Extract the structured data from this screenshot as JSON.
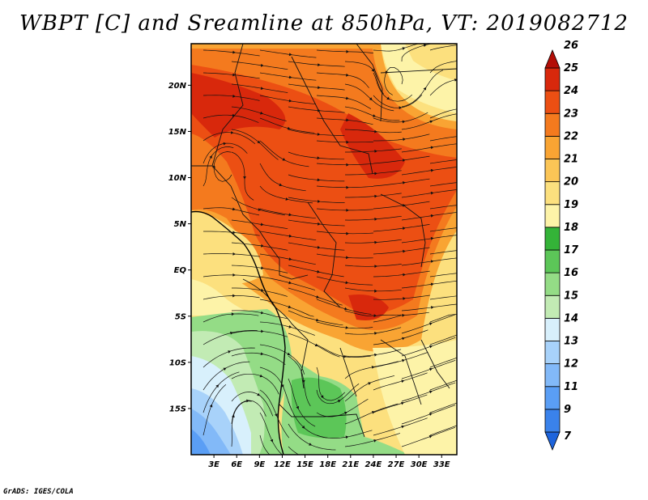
{
  "title": "WBPT [C] and Sreamline at 850hPa, VT: 2019082712",
  "credit": "GrADS: IGES/COLA",
  "map": {
    "lon_range": [
      0,
      35
    ],
    "lat_range": [
      -20,
      24.5
    ],
    "lat_ticks": [
      {
        "value": 20,
        "label": "20N"
      },
      {
        "value": 15,
        "label": "15N"
      },
      {
        "value": 10,
        "label": "10N"
      },
      {
        "value": 5,
        "label": "5N"
      },
      {
        "value": 0,
        "label": "EQ"
      },
      {
        "value": -5,
        "label": "5S"
      },
      {
        "value": -10,
        "label": "10S"
      },
      {
        "value": -15,
        "label": "15S"
      }
    ],
    "lon_ticks": [
      {
        "value": 3,
        "label": "3E"
      },
      {
        "value": 6,
        "label": "6E"
      },
      {
        "value": 9,
        "label": "9E"
      },
      {
        "value": 12,
        "label": "12E"
      },
      {
        "value": 15,
        "label": "15E"
      },
      {
        "value": 18,
        "label": "18E"
      },
      {
        "value": 21,
        "label": "21E"
      },
      {
        "value": 24,
        "label": "24E"
      },
      {
        "value": 27,
        "label": "27E"
      },
      {
        "value": 30,
        "label": "30E"
      },
      {
        "value": 33,
        "label": "33E"
      }
    ]
  },
  "colorbar": {
    "labels": [
      "7",
      "9",
      "11",
      "12",
      "13",
      "14",
      "15",
      "16",
      "17",
      "18",
      "19",
      "20",
      "21",
      "22",
      "23",
      "24",
      "25",
      "26"
    ],
    "colors": [
      "#1d64dc",
      "#3a82eb",
      "#5a9ef5",
      "#82b9f8",
      "#a8d2fa",
      "#d8f0fc",
      "#c2ebb4",
      "#94dc86",
      "#5cc658",
      "#34b338",
      "#fdf3a8",
      "#fce07e",
      "#fbc556",
      "#f9a433",
      "#f47a1e",
      "#ec4f13",
      "#d8280c",
      "#b30e07"
    ]
  }
}
